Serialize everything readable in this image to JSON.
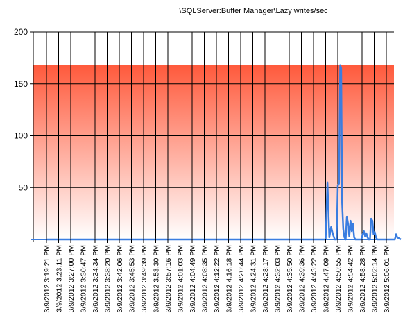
{
  "chart_data": {
    "type": "area",
    "title": "\\SQLServer:Buffer Manager\\Lazy writes/sec",
    "xlabel": "",
    "ylabel": "",
    "ylim": [
      0,
      200
    ],
    "yticks": [
      200,
      150,
      100,
      50
    ],
    "grid": true,
    "x_tick_labels": [
      "3/9/2012 3:19:21 PM",
      "3/9/2012 3:23:11 PM",
      "3/9/2012 3:27:00 PM",
      "3/9/2012 3:30:47 PM",
      "3/9/2012 3:34:34 PM",
      "3/9/2012 3:38:20 PM",
      "3/9/2012 3:42:06 PM",
      "3/9/2012 3:45:53 PM",
      "3/9/2012 3:49:39 PM",
      "3/9/2012 3:53:30 PM",
      "3/9/2012 3:57:16 PM",
      "3/9/2012 4:01:03 PM",
      "3/9/2012 4:04:49 PM",
      "3/9/2012 4:08:35 PM",
      "3/9/2012 4:12:22 PM",
      "3/9/2012 4:16:18 PM",
      "3/9/2012 4:20:44 PM",
      "3/9/2012 4:24:31 PM",
      "3/9/2012 4:28:17 PM",
      "3/9/2012 4:32:03 PM",
      "3/9/2012 4:35:50 PM",
      "3/9/2012 4:39:36 PM",
      "3/9/2012 4:43:22 PM",
      "3/9/2012 4:47:09 PM",
      "3/9/2012 4:50:55 PM",
      "3/9/2012 4:54:42 PM",
      "3/9/2012 4:58:28 PM",
      "3/9/2012 5:02:14 PM",
      "3/9/2012 5:06:01 PM"
    ],
    "band": {
      "from": 0,
      "to": 168,
      "color_top": "#ff5a3c",
      "color_bottom": "#ffffff"
    },
    "series": [
      {
        "color": "#3a7de0",
        "x": [
          0,
          23.0,
          23.15,
          23.3,
          23.45,
          23.6,
          23.75,
          23.9,
          24.0,
          24.1,
          24.2,
          24.28,
          24.36,
          24.45,
          24.55,
          24.65,
          24.75,
          24.85,
          24.95,
          25.05,
          25.15,
          25.25,
          25.35,
          25.45,
          25.55,
          25.65,
          25.75,
          25.85,
          25.95,
          26.05,
          26.15,
          26.25,
          26.35,
          26.45,
          26.55,
          26.65,
          26.75,
          26.85,
          26.95,
          27.05,
          27.15,
          27.25,
          27.35,
          27.45,
          27.55,
          27.7,
          27.85,
          28.0,
          28.2,
          28.5,
          28.7,
          28.8,
          28.9,
          29.2
        ],
        "y": [
          0,
          0,
          55,
          2,
          12,
          5,
          0,
          0,
          52,
          54,
          168,
          165,
          35,
          10,
          2,
          0,
          22,
          15,
          3,
          18,
          8,
          15,
          2,
          0,
          0,
          0,
          0,
          0,
          0,
          5,
          8,
          3,
          6,
          2,
          0,
          0,
          20,
          18,
          5,
          7,
          2,
          0,
          0,
          0,
          0,
          0,
          0,
          0,
          0,
          0,
          0,
          5,
          2,
          0
        ]
      }
    ]
  }
}
